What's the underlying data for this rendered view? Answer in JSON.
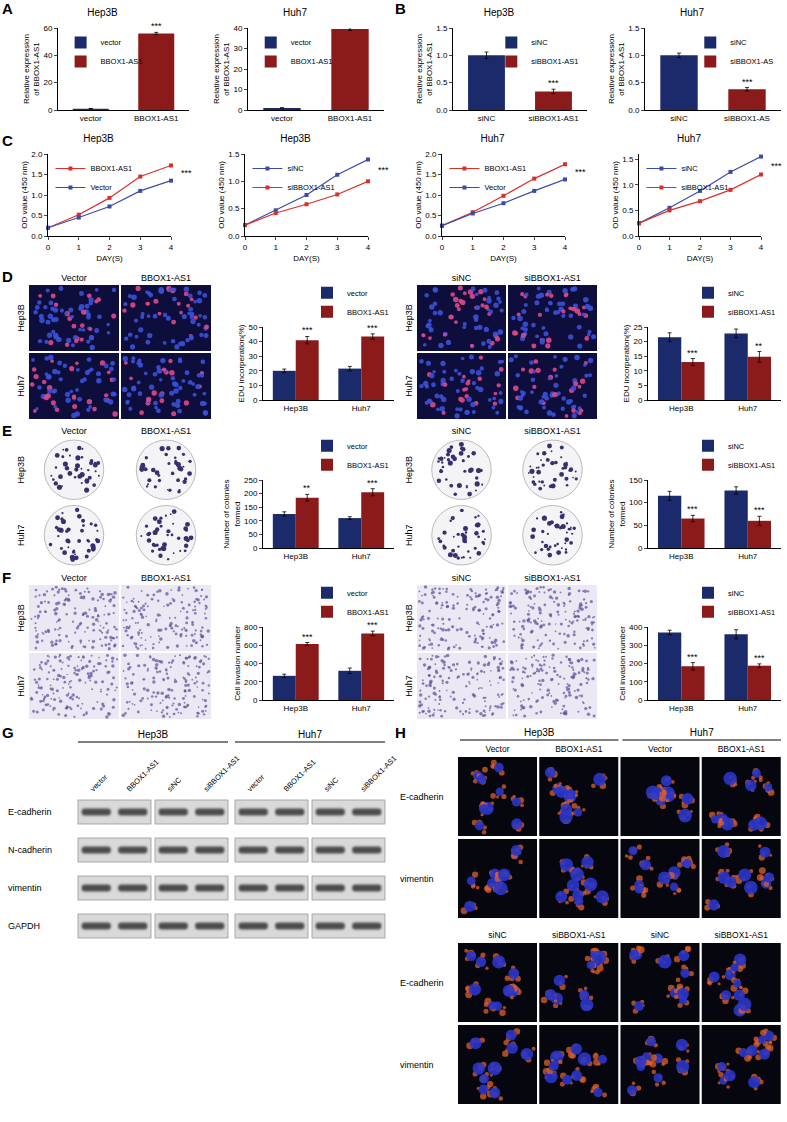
{
  "panel_labels": [
    "A",
    "B",
    "C",
    "D",
    "E",
    "F",
    "G",
    "H"
  ],
  "chart_data": [
    {
      "type": "bar",
      "title": "Hep3B",
      "ylabel": "Relative expression of BBOX1-AS1",
      "categories": [
        "vector",
        "BBOX1-AS1"
      ],
      "values": [
        1,
        56
      ],
      "errors": [
        0.1,
        0.8
      ],
      "colors": [
        "#1b2a6b",
        "#8b1a1a"
      ],
      "ylim": [
        0,
        60
      ],
      "yticks": [
        0,
        20,
        40,
        60
      ],
      "legend": "upper left",
      "annotations": [
        {
          "text": "***",
          "at": "BBOX1-AS1"
        }
      ]
    },
    {
      "type": "bar",
      "title": "Huh7",
      "ylabel": "Relative expression of BBOX1-AS1",
      "categories": [
        "vector",
        "BBOX1-AS1"
      ],
      "values": [
        1,
        39.5
      ],
      "errors": [
        0.1,
        0.7
      ],
      "colors": [
        "#1b2a6b",
        "#8b1a1a"
      ],
      "ylim": [
        0,
        40
      ],
      "yticks": [
        0,
        10,
        20,
        30,
        40
      ],
      "legend": "upper left",
      "annotations": [
        {
          "text": "***",
          "at": "BBOX1-AS1"
        }
      ]
    },
    {
      "type": "bar",
      "title": "Hep3B",
      "ylabel": "Relative expression of BBOX1-AS1",
      "categories": [
        "siNC",
        "siBBOX1-AS1"
      ],
      "values": [
        1.0,
        0.34
      ],
      "errors": [
        0.06,
        0.04
      ],
      "colors": [
        "#1b2a6b",
        "#8b1a1a"
      ],
      "ylim": [
        0,
        1.5
      ],
      "yticks": [
        {
          "value": 0,
          "label": "0.0"
        },
        {
          "value": 0.5,
          "label": "0.5"
        },
        {
          "value": 1,
          "label": "1.0"
        },
        {
          "value": 1.5,
          "label": "1.5"
        }
      ],
      "legend": "upper right",
      "annotations": [
        {
          "text": "***",
          "at": "siBBOX1-AS1"
        }
      ]
    },
    {
      "type": "bar",
      "title": "Huh7",
      "ylabel": "Relative expression of BBOX1-AS1",
      "categories": [
        "siNC",
        "siBBOX1-AS"
      ],
      "values": [
        1.0,
        0.38
      ],
      "errors": [
        0.04,
        0.03
      ],
      "colors": [
        "#1b2a6b",
        "#8b1a1a"
      ],
      "ylim": [
        0,
        1.5
      ],
      "yticks": [
        {
          "value": 0,
          "label": "0.0"
        },
        {
          "value": 0.5,
          "label": "0.5"
        },
        {
          "value": 1,
          "label": "1.0"
        },
        {
          "value": 1.5,
          "label": "1.5"
        }
      ],
      "legend": "upper right",
      "annotations": [
        {
          "text": "***",
          "at": "siBBOX1-AS"
        }
      ]
    },
    {
      "type": "line",
      "title": "Hep3B",
      "xlabel": "DAY(S)",
      "ylabel": "OD value (450 nm)",
      "x": [
        0,
        1,
        2,
        3,
        4
      ],
      "xlim": [
        0,
        4
      ],
      "xticks": [
        0,
        1,
        2,
        3,
        4
      ],
      "ylim": [
        0,
        2
      ],
      "yticks": [
        {
          "value": 0,
          "label": "0.0"
        },
        {
          "value": 0.5,
          "label": "0.5"
        },
        {
          "value": 1,
          "label": "1.0"
        },
        {
          "value": 1.5,
          "label": "1.5"
        },
        {
          "value": 2,
          "label": "2.0"
        }
      ],
      "legend": "upper left",
      "marker": "square",
      "series": [
        {
          "name": "BBOX1-AS1",
          "color": "#d7302a",
          "values": [
            0.2,
            0.52,
            0.93,
            1.45,
            1.72
          ]
        },
        {
          "name": "Vector",
          "color": "#3b4ba8",
          "values": [
            0.2,
            0.45,
            0.72,
            1.1,
            1.35
          ]
        }
      ],
      "annotations": [
        {
          "text": "***",
          "at": 4
        }
      ]
    },
    {
      "type": "line",
      "title": "Hep3B",
      "xlabel": "DAY(S)",
      "ylabel": "OD value (450 nm)",
      "x": [
        0,
        1,
        2,
        3,
        4
      ],
      "xlim": [
        0,
        4
      ],
      "xticks": [
        0,
        1,
        2,
        3,
        4
      ],
      "ylim": [
        0,
        1.5
      ],
      "yticks": [
        {
          "value": 0,
          "label": "0.0"
        },
        {
          "value": 0.5,
          "label": "0.5"
        },
        {
          "value": 1,
          "label": "1.0"
        },
        {
          "value": 1.5,
          "label": "1.5"
        }
      ],
      "legend": "upper left",
      "marker": "square",
      "series": [
        {
          "name": "siNC",
          "color": "#3b4ba8",
          "values": [
            0.2,
            0.47,
            0.75,
            1.12,
            1.4
          ]
        },
        {
          "name": "siBBOX1-AS1",
          "color": "#d7302a",
          "values": [
            0.2,
            0.42,
            0.58,
            0.76,
            1.0
          ]
        }
      ],
      "annotations": [
        {
          "text": "***",
          "at": 4
        }
      ]
    },
    {
      "type": "line",
      "title": "Huh7",
      "xlabel": "DAY(S)",
      "ylabel": "OD value (450 nm)",
      "x": [
        0,
        1,
        2,
        3,
        4
      ],
      "xlim": [
        0,
        4
      ],
      "xticks": [
        0,
        1,
        2,
        3,
        4
      ],
      "ylim": [
        0,
        2
      ],
      "yticks": [
        {
          "value": 0,
          "label": "0.0"
        },
        {
          "value": 0.5,
          "label": "0.5"
        },
        {
          "value": 1,
          "label": "1.0"
        },
        {
          "value": 1.5,
          "label": "1.5"
        },
        {
          "value": 2,
          "label": "2.0"
        }
      ],
      "legend": "upper left",
      "marker": "square",
      "series": [
        {
          "name": "BBOX1-AS1",
          "color": "#d7302a",
          "values": [
            0.25,
            0.58,
            0.98,
            1.4,
            1.75
          ]
        },
        {
          "name": "Vector",
          "color": "#3b4ba8",
          "values": [
            0.25,
            0.55,
            0.8,
            1.1,
            1.38
          ]
        }
      ],
      "annotations": [
        {
          "text": "***",
          "at": 4
        }
      ]
    },
    {
      "type": "line",
      "title": "Huh7",
      "xlabel": "DAY(S)",
      "ylabel": "OD value (450 nm)",
      "x": [
        0,
        1,
        2,
        3,
        4
      ],
      "xlim": [
        0,
        4
      ],
      "xticks": [
        0,
        1,
        2,
        3,
        4
      ],
      "ylim": [
        0,
        1.6
      ],
      "yticks": [
        {
          "value": 0,
          "label": "0.0"
        },
        {
          "value": 0.5,
          "label": "0.5"
        },
        {
          "value": 1,
          "label": "1.0"
        },
        {
          "value": 1.5,
          "label": "1.5"
        }
      ],
      "legend": "upper left",
      "marker": "square",
      "series": [
        {
          "name": "siNC",
          "color": "#3b4ba8",
          "values": [
            0.25,
            0.55,
            0.88,
            1.25,
            1.55
          ]
        },
        {
          "name": "siBBOX1-AS1",
          "color": "#d7302a",
          "values": [
            0.25,
            0.5,
            0.68,
            0.9,
            1.2
          ]
        }
      ],
      "annotations": [
        {
          "text": "***",
          "at": 4
        }
      ]
    },
    {
      "type": "bar",
      "ylabel": "EDU incorperation(%)",
      "categories": [
        "Hep3B",
        "Huh7"
      ],
      "series": [
        {
          "name": "vector",
          "color": "#1b2a6b",
          "values": [
            20,
            21.5
          ],
          "errors": [
            1.2,
            1.5
          ]
        },
        {
          "name": "BBOX1-AS1",
          "color": "#8b1a1a",
          "values": [
            41,
            43.5
          ],
          "errors": [
            2.5,
            1.8
          ]
        }
      ],
      "ylim": [
        0,
        50
      ],
      "yticks": [
        0,
        10,
        20,
        30,
        40,
        50
      ],
      "legend": "top right",
      "annotations": [
        {
          "text": "***",
          "at": "Hep3B"
        },
        {
          "text": "***",
          "at": "Huh7"
        }
      ]
    },
    {
      "type": "bar",
      "ylabel": "EDU incorperation(%)",
      "categories": [
        "Hep3B",
        "Huh7"
      ],
      "series": [
        {
          "name": "siNC",
          "color": "#1b2a6b",
          "values": [
            21.5,
            22.8
          ],
          "errors": [
            1.5,
            1.5
          ]
        },
        {
          "name": "siBBOX1-AS1",
          "color": "#8b1a1a",
          "values": [
            13,
            14.8
          ],
          "errors": [
            1.2,
            1.8
          ]
        }
      ],
      "ylim": [
        0,
        25
      ],
      "yticks": [
        0,
        5,
        10,
        15,
        20,
        25
      ],
      "legend": "top right",
      "annotations": [
        {
          "text": "***",
          "at": "Hep3B"
        },
        {
          "text": "**",
          "at": "Huh7"
        }
      ]
    },
    {
      "type": "bar",
      "ylabel": "Number of colonies formed",
      "categories": [
        "Hep3B",
        "Huh7"
      ],
      "series": [
        {
          "name": "vector",
          "color": "#1b2a6b",
          "values": [
            125,
            110
          ],
          "errors": [
            8,
            5
          ]
        },
        {
          "name": "BBOX1-AS1",
          "color": "#8b1a1a",
          "values": [
            185,
            205
          ],
          "errors": [
            12,
            13
          ]
        }
      ],
      "ylim": [
        0,
        250
      ],
      "yticks": [
        0,
        50,
        100,
        150,
        200,
        250
      ],
      "legend": "top right",
      "annotations": [
        {
          "text": "**",
          "at": "Hep3B"
        },
        {
          "text": "***",
          "at": "Huh7"
        }
      ]
    },
    {
      "type": "bar",
      "ylabel": "Number of colonies formed",
      "categories": [
        "Hep3B",
        "Huh7"
      ],
      "series": [
        {
          "name": "siNC",
          "color": "#1b2a6b",
          "values": [
            115,
            127
          ],
          "errors": [
            10,
            8
          ]
        },
        {
          "name": "siBBOX1-AS1",
          "color": "#8b1a1a",
          "values": [
            65,
            60
          ],
          "errors": [
            7,
            10
          ]
        }
      ],
      "ylim": [
        0,
        150
      ],
      "yticks": [
        0,
        50,
        100,
        150
      ],
      "legend": "top right",
      "annotations": [
        {
          "text": "***",
          "at": "Hep3B"
        },
        {
          "text": "***",
          "at": "Huh7"
        }
      ]
    },
    {
      "type": "bar",
      "ylabel": "Cell invasion number",
      "categories": [
        "Hep3B",
        "Huh7"
      ],
      "series": [
        {
          "name": "vector",
          "color": "#1b2a6b",
          "values": [
            265,
            320
          ],
          "errors": [
            18,
            30
          ]
        },
        {
          "name": "BBOX1-AS1",
          "color": "#8b1a1a",
          "values": [
            615,
            730
          ],
          "errors": [
            15,
            25
          ]
        }
      ],
      "ylim": [
        0,
        800
      ],
      "yticks": [
        0,
        200,
        400,
        600,
        800
      ],
      "legend": "top right",
      "annotations": [
        {
          "text": "***",
          "at": "Hep3B"
        },
        {
          "text": "***",
          "at": "Huh7"
        }
      ]
    },
    {
      "type": "bar",
      "ylabel": "Cell invasion number",
      "categories": [
        "Hep3B",
        "Huh7"
      ],
      "series": [
        {
          "name": "siNC",
          "color": "#1b2a6b",
          "values": [
            370,
            360
          ],
          "errors": [
            12,
            25
          ]
        },
        {
          "name": "siBBOX1-AS1",
          "color": "#8b1a1a",
          "values": [
            185,
            188
          ],
          "errors": [
            20,
            10
          ]
        }
      ],
      "ylim": [
        0,
        400
      ],
      "yticks": [
        0,
        100,
        200,
        300,
        400
      ],
      "legend": "top right",
      "annotations": [
        {
          "text": "***",
          "at": "Hep3B"
        },
        {
          "text": "***",
          "at": "Huh7"
        }
      ]
    }
  ],
  "image_panels": [
    {
      "columns": [
        "Vector",
        "BBOX1-AS1"
      ],
      "rows": [
        "Hep3B",
        "Huh7"
      ]
    },
    {
      "columns": [
        "siNC",
        "siBBOX1-AS1"
      ],
      "rows": [
        "Hep3B",
        "Huh7"
      ]
    },
    {
      "columns": [
        "Vector",
        "BBOX1-AS1"
      ],
      "rows": [
        "Hep3B",
        "Huh7"
      ]
    },
    {
      "columns": [
        "siNC",
        "siBBOX1-AS1"
      ],
      "rows": [
        "Hep3B",
        "Huh7"
      ]
    },
    {
      "columns": [
        "Vector",
        "BBOX1-AS1"
      ],
      "rows": [
        "Hep3B",
        "Huh7"
      ]
    },
    {
      "columns": [
        "siNC",
        "siBBOX1-AS1"
      ],
      "rows": [
        "Hep3B",
        "Huh7"
      ]
    }
  ],
  "western_blot": {
    "groups": [
      {
        "label": "Hep3B",
        "lanes": [
          "vector",
          "BBOX1-AS1",
          "siNC",
          "siBBOX1-AS1"
        ]
      },
      {
        "label": "Huh7",
        "lanes": [
          "vector",
          "BBOX1-AS1",
          "siNC",
          "siBBOX1-AS1"
        ]
      }
    ],
    "rows": [
      "E-cadherin",
      "N-cadherin",
      "vimentin",
      "GAPDH"
    ]
  },
  "immunofluorescence": {
    "blocks": [
      {
        "groups": [
          {
            "label": "Hep3B",
            "columns": [
              "Vector",
              "BBOX1-AS1"
            ]
          },
          {
            "label": "Huh7",
            "columns": [
              "Vector",
              "BBOX1-AS1"
            ]
          }
        ],
        "rows": [
          "E-cadherin",
          "vimentin"
        ]
      },
      {
        "groups": [
          {
            "columns": [
              "siNC",
              "siBBOX1-AS1"
            ]
          },
          {
            "columns": [
              "siNC",
              "siBBOX1-AS1"
            ]
          }
        ],
        "rows": [
          "E-cadherin",
          "vimentin"
        ]
      }
    ]
  }
}
